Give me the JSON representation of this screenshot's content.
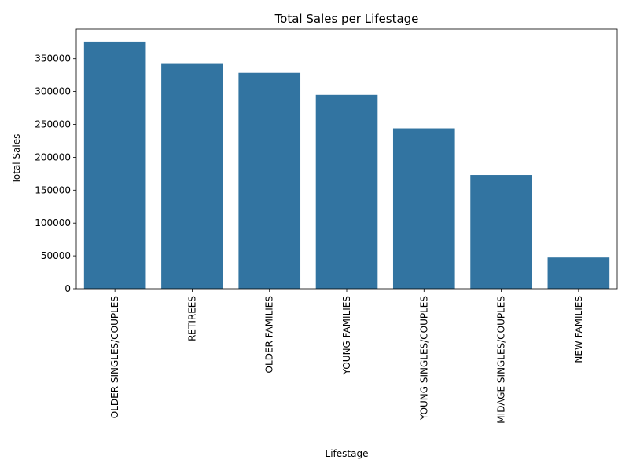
{
  "chart_data": {
    "type": "bar",
    "title": "Total Sales per Lifestage",
    "xlabel": "Lifestage",
    "ylabel": "Total Sales",
    "categories": [
      "OLDER SINGLES/COUPLES",
      "RETIREES",
      "OLDER FAMILIES",
      "YOUNG FAMILIES",
      "YOUNG SINGLES/COUPLES",
      "MIDAGE SINGLES/COUPLES",
      "NEW FAMILIES"
    ],
    "values": [
      376000,
      343000,
      328500,
      295000,
      244000,
      173000,
      47500
    ],
    "ylim": [
      0,
      395000
    ],
    "yticks": [
      0,
      50000,
      100000,
      150000,
      200000,
      250000,
      300000,
      350000
    ],
    "ytick_labels": [
      "0",
      "50000",
      "100000",
      "150000",
      "200000",
      "250000",
      "300000",
      "350000"
    ],
    "bar_color": "#3274a1",
    "grid": false,
    "legend": false
  }
}
